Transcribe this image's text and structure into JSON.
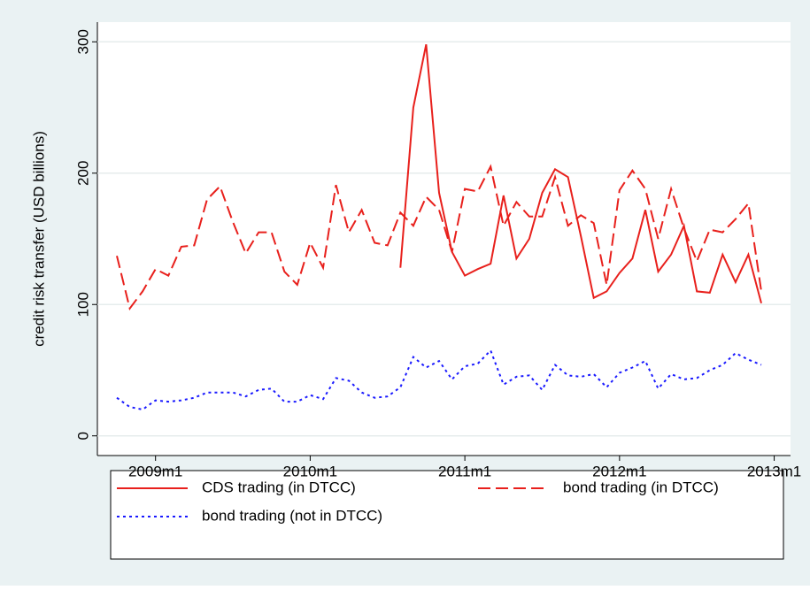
{
  "chart_data": {
    "type": "line",
    "y_label": "credit risk transfer (USD billions)",
    "categories": [
      null,
      null,
      null,
      "2009m1",
      null,
      null,
      null,
      null,
      null,
      null,
      null,
      null,
      null,
      null,
      null,
      "2010m1",
      null,
      null,
      null,
      null,
      null,
      null,
      null,
      null,
      null,
      null,
      null,
      "2011m1",
      null,
      null,
      null,
      null,
      null,
      null,
      null,
      null,
      null,
      null,
      null,
      "2012m1",
      null,
      null,
      null,
      null,
      null,
      null,
      null,
      null,
      null,
      null,
      null,
      "2013m1"
    ],
    "series": [
      {
        "name": "CDS trading (in DTCC)",
        "color": "#e8201c",
        "dash": "solid",
        "values": [
          null,
          null,
          null,
          null,
          null,
          null,
          null,
          null,
          null,
          null,
          null,
          null,
          null,
          null,
          null,
          null,
          null,
          null,
          null,
          null,
          null,
          null,
          128,
          250,
          298,
          185,
          140,
          122,
          127,
          131,
          183,
          135,
          150,
          185,
          203,
          197,
          152,
          105,
          110,
          124,
          135,
          172,
          125,
          138,
          160,
          110,
          109,
          138,
          117,
          138,
          101,
          null
        ]
      },
      {
        "name": "bond trading (in DTCC)",
        "color": "#e8201c",
        "dash": "dashed",
        "values": [
          137,
          97,
          110,
          127,
          122,
          144,
          145,
          180,
          190,
          163,
          139,
          155,
          155,
          125,
          115,
          147,
          128,
          191,
          155,
          172,
          147,
          145,
          170,
          160,
          182,
          172,
          140,
          188,
          186,
          205,
          160,
          178,
          167,
          167,
          197,
          160,
          168,
          162,
          115,
          187,
          202,
          188,
          150,
          188,
          158,
          133,
          157,
          155,
          165,
          177,
          110,
          null
        ]
      },
      {
        "name": "bond trading (not in DTCC)",
        "color": "#1a1aff",
        "dash": "dotted",
        "values": [
          29,
          22,
          20,
          27,
          26,
          27,
          29,
          33,
          33,
          33,
          30,
          35,
          36,
          26,
          26,
          31,
          28,
          44,
          42,
          33,
          29,
          30,
          37,
          60,
          52,
          57,
          43,
          53,
          55,
          65,
          39,
          45,
          46,
          35,
          54,
          46,
          45,
          47,
          37,
          48,
          52,
          57,
          36,
          47,
          43,
          44,
          50,
          54,
          63,
          58,
          54,
          null
        ]
      }
    ],
    "ylim": [
      -15,
      315
    ],
    "yticks": [
      0,
      100,
      200,
      300
    ],
    "grid": true
  }
}
